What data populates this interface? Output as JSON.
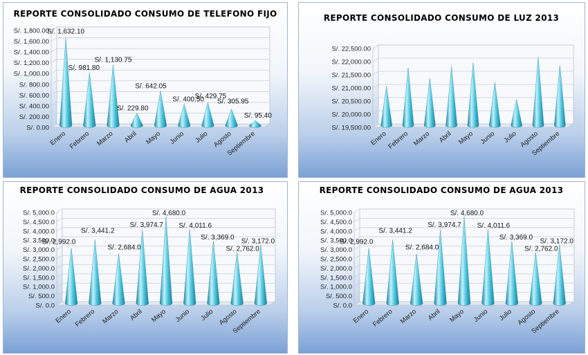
{
  "chart_data": [
    {
      "type": "bar",
      "title": "REPORTE CONSOLIDADO CONSUMO DE TELEFONO FIJO",
      "categories": [
        "Enero",
        "Febrero",
        "Marzo",
        "Abril",
        "Mayo",
        "Junio",
        "Julio",
        "Agosto",
        "Septiembre"
      ],
      "values": [
        1632.1,
        981.8,
        1130.75,
        229.8,
        642.05,
        400.5,
        429.75,
        305.95,
        95.4
      ],
      "data_labels": [
        "S/. 1,632.10",
        "S/. 981.80",
        "S/. 1,130.75",
        "S/. 229.80",
        "S/. 642.05",
        "S/. 400.50",
        "S/. 429.75",
        "S/. 305.95",
        "S/. 95.40"
      ],
      "yticks": [
        "S/. 0.00",
        "S/. 200.00",
        "S/. 400.00",
        "S/. 600.00",
        "S/. 800.00",
        "S/. 1,000.00",
        "S/. 1,200.00",
        "S/. 1,400.00",
        "S/. 1,600.00",
        "S/. 1,800.00"
      ],
      "ylim": [
        0,
        1800
      ],
      "grid": true,
      "legend": "none"
    },
    {
      "type": "bar",
      "title": "REPORTE CONSOLIDADO CONSUMO DE LUZ 2013",
      "categories": [
        "Enero",
        "Febrero",
        "Marzo",
        "Abril",
        "Mayo",
        "Junio",
        "Julio",
        "Agosto",
        "Septiembre"
      ],
      "values": [
        21000,
        21700,
        21300,
        21750,
        21900,
        21150,
        20500,
        22100,
        21800
      ],
      "yticks": [
        "S/. 19,500.00",
        "S/. 20,000.00",
        "S/. 20,500.00",
        "S/. 21,000.00",
        "S/. 21,500.00",
        "S/. 22,000.00",
        "S/. 22,500.00"
      ],
      "ylim": [
        19500,
        22500
      ],
      "grid": true,
      "legend": "none"
    },
    {
      "type": "bar",
      "title": "REPORTE CONSOLIDADO CONSUMO DE AGUA 2013",
      "categories": [
        "Enero",
        "Febrero",
        "Marzo",
        "Abril",
        "Mayo",
        "Junio",
        "Julio",
        "Agosto",
        "Septiembre"
      ],
      "values": [
        2992.0,
        3441.2,
        2684.0,
        3974.7,
        4680.0,
        4011.6,
        3369.0,
        2762.0,
        3172.0
      ],
      "data_labels": [
        "S/. 2,992.0",
        "S/. 3,441.2",
        "S/. 2,684.0",
        "S/. 3,974.7",
        "S/. 4,680.0",
        "S/. 4,011.6",
        "S/. 3,369.0",
        "S/. 2,762.0",
        "S/. 3,172.0"
      ],
      "yticks": [
        "S/. 0.0",
        "S/. 500.0",
        "S/. 1,000.0",
        "S/. 1,500.0",
        "S/. 2,000.0",
        "S/. 2,500.0",
        "S/. 3,000.0",
        "S/. 3,500.0",
        "S/. 4,000.0",
        "S/. 4,500.0",
        "S/. 5,000.0"
      ],
      "ylim": [
        0,
        5000
      ],
      "grid": true,
      "legend": "none"
    },
    {
      "type": "bar",
      "title": "REPORTE CONSOLIDADO CONSUMO DE AGUA 2013",
      "categories": [
        "Enero",
        "Febrero",
        "Marzo",
        "Abril",
        "Mayo",
        "Junio",
        "Julio",
        "Agosto",
        "Septiembre"
      ],
      "values": [
        2992.0,
        3441.2,
        2684.0,
        3974.7,
        4680.0,
        4011.6,
        3369.0,
        2762.0,
        3172.0
      ],
      "data_labels": [
        "S/. 2,992.0",
        "S/. 3,441.2",
        "S/. 2,684.0",
        "S/. 3,974.7",
        "S/. 4,680.0",
        "S/. 4,011.6",
        "S/. 3,369.0",
        "S/. 2,762.0",
        "S/. 3,172.0"
      ],
      "yticks": [
        "S/. 0.0",
        "S/. 500.0",
        "S/. 1,000.0",
        "S/. 1,500.0",
        "S/. 2,000.0",
        "S/. 2,500.0",
        "S/. 3,000.0",
        "S/. 3,500.0",
        "S/. 4,000.0",
        "S/. 4,500.0",
        "S/. 5,000.0"
      ],
      "ylim": [
        0,
        5000
      ],
      "grid": true,
      "legend": "none"
    }
  ],
  "colors": {
    "cone_light": "#bff3ff",
    "cone_mid": "#4cc4dc",
    "cone_dark": "#1a7f97",
    "grid": "#c9d1dc",
    "floor": "#e3e9f1"
  }
}
